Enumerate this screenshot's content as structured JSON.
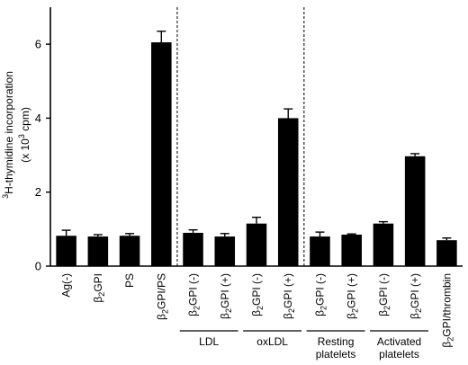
{
  "chart_data": {
    "type": "bar",
    "ylabel": {
      "line1_sup": "3",
      "line1": "H-thymidine incorporation",
      "line2_pre": "(x 10",
      "line2_sup": "3",
      "line2_post": " cpm)"
    },
    "ylim": [
      0,
      7.0
    ],
    "yticks": [
      0,
      2,
      4,
      6
    ],
    "bar_color": "#000000",
    "categories": [
      {
        "id": "ag-neg",
        "label": "Ag(-)",
        "value": 0.82,
        "error": 0.15
      },
      {
        "id": "b2gpi",
        "label_pre": "β",
        "label_sub": "2",
        "label_post": "GPI",
        "value": 0.8,
        "error": 0.05
      },
      {
        "id": "ps",
        "label": "PS",
        "value": 0.82,
        "error": 0.06
      },
      {
        "id": "b2gpi-ps",
        "label_pre": "β",
        "label_sub": "2",
        "label_post": "GPI/PS",
        "value": 6.05,
        "error": 0.3
      },
      {
        "id": "ldl-minus",
        "label_pre": "β",
        "label_sub": "2",
        "label_post": "GPI (-)",
        "value": 0.9,
        "error": 0.08
      },
      {
        "id": "ldl-plus",
        "label_pre": "β",
        "label_sub": "2",
        "label_post": "GPI (+)",
        "value": 0.8,
        "error": 0.08
      },
      {
        "id": "oxldl-minus",
        "label_pre": "β",
        "label_sub": "2",
        "label_post": "GPI (-)",
        "value": 1.15,
        "error": 0.17
      },
      {
        "id": "oxldl-plus",
        "label_pre": "β",
        "label_sub": "2",
        "label_post": "GPI (+)",
        "value": 4.0,
        "error": 0.25
      },
      {
        "id": "rest-minus",
        "label_pre": "β",
        "label_sub": "2",
        "label_post": "GPI (-)",
        "value": 0.8,
        "error": 0.12
      },
      {
        "id": "rest-plus",
        "label_pre": "β",
        "label_sub": "2",
        "label_post": "GPI (+)",
        "value": 0.85,
        "error": 0.02
      },
      {
        "id": "act-minus",
        "label_pre": "β",
        "label_sub": "2",
        "label_post": "GPI (-)",
        "value": 1.15,
        "error": 0.05
      },
      {
        "id": "act-plus",
        "label_pre": "β",
        "label_sub": "2",
        "label_post": "GPI (+)",
        "value": 2.97,
        "error": 0.07
      },
      {
        "id": "b2gpi-thrombin",
        "label_pre": "β",
        "label_sub": "2",
        "label_post": "GPI/thrombin",
        "value": 0.7,
        "error": 0.06
      }
    ],
    "groups": [
      {
        "label_lines": [
          "LDL"
        ],
        "from": 4,
        "to": 5
      },
      {
        "label_lines": [
          "oxLDL"
        ],
        "from": 6,
        "to": 7
      },
      {
        "label_lines": [
          "Resting",
          "platelets"
        ],
        "from": 8,
        "to": 9
      },
      {
        "label_lines": [
          "Activated",
          "platelets"
        ],
        "from": 10,
        "to": 11
      }
    ],
    "dividers_after_category": [
      3,
      7
    ],
    "legend": "none",
    "grid": false
  }
}
